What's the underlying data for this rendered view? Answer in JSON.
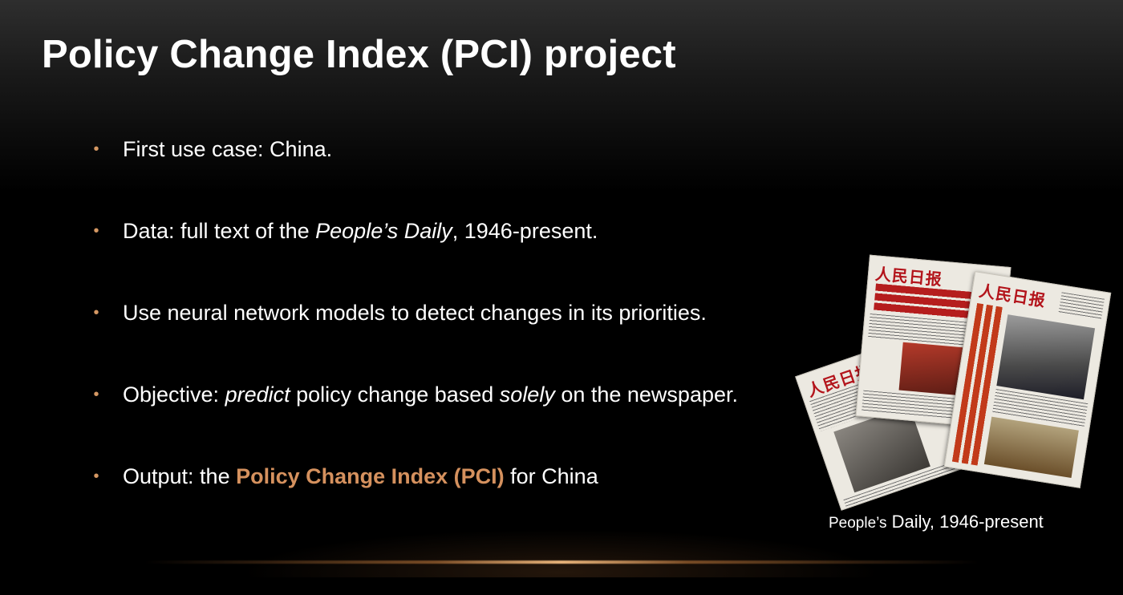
{
  "slide": {
    "title": "Policy Change Index (PCI) project",
    "bullet_marker": "•",
    "bullets": [
      {
        "text": "First use case: China."
      },
      {
        "pre": "Data: full text of the ",
        "em": "People’s Daily",
        "post": ", 1946-present."
      },
      {
        "text": "Use neural network models to detect changes in its priorities."
      },
      {
        "pre": "Objective: ",
        "em1": "predict",
        "mid": " policy change based ",
        "em2": "solely",
        "post": " on the newspaper."
      },
      {
        "pre": "Output: the ",
        "highlight": "Policy Change Index (PCI)",
        "post": " for China"
      }
    ],
    "image": {
      "description_icon": "newspaper-collage",
      "masthead": "人民日报"
    },
    "caption": {
      "part1": "People’s",
      "part2": " Daily, 1946-present"
    },
    "colors": {
      "accent": "#d5915e",
      "background": "#000000",
      "text": "#ffffff"
    }
  }
}
